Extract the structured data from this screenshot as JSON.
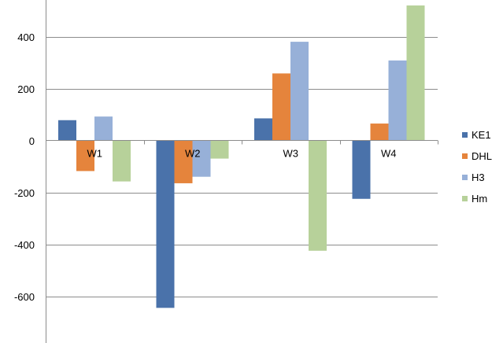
{
  "chart_data": {
    "type": "bar",
    "categories": [
      "W1",
      "W2",
      "W3",
      "W4"
    ],
    "series": [
      {
        "name": "KE1",
        "color": "#4a72aa",
        "values": [
          78,
          -645,
          85,
          -225
        ]
      },
      {
        "name": "DHL",
        "color": "#e5843c",
        "values": [
          -118,
          -165,
          258,
          65
        ]
      },
      {
        "name": "H3",
        "color": "#97b0d8",
        "values": [
          92,
          -140,
          380,
          308
        ]
      },
      {
        "name": "Hm",
        "color": "#b7d19a",
        "values": [
          -158,
          -70,
          -425,
          520
        ]
      }
    ],
    "yticks": [
      -600,
      -400,
      -200,
      0,
      200,
      400
    ],
    "ylim": [
      -780,
      530
    ],
    "grid": true,
    "legend_position": "right",
    "title": "",
    "xlabel": "",
    "ylabel": ""
  }
}
